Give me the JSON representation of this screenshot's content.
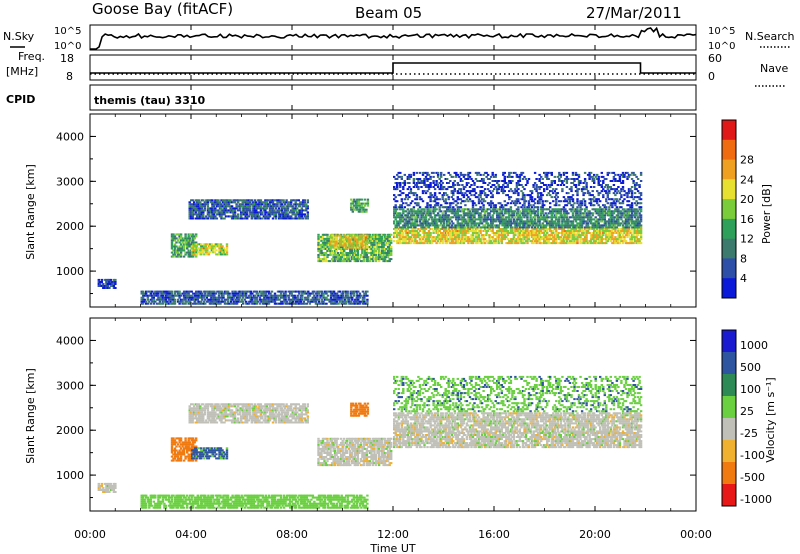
{
  "header": {
    "station": "Goose Bay (fitACF)",
    "beam": "Beam 05",
    "date": "27/Mar/2011"
  },
  "top_panels": {
    "nsky": {
      "label": "N.Sky",
      "ticks": [
        "10^5",
        "10^0"
      ]
    },
    "nsearch": {
      "label": "N.Search",
      "ticks": [
        "10^5",
        "10^0"
      ]
    },
    "freq": {
      "label_line1": "Freq.",
      "label_line2": "[MHz]",
      "ticks": [
        "18",
        "8"
      ]
    },
    "nave": {
      "label": "Nave",
      "ticks": [
        "60",
        "0"
      ]
    },
    "cpid": {
      "label": "CPID",
      "value": "themis (tau) 3310"
    }
  },
  "colors": {
    "power_scale": [
      "#0a1ad8",
      "#2e4fa8",
      "#3d7a6e",
      "#2ea05a",
      "#7acc3a",
      "#e8e030",
      "#f0a020",
      "#f06a10",
      "#e01818"
    ],
    "velocity_scale": [
      "#1a1ad0",
      "#2e55a0",
      "#2e8a55",
      "#6ad040",
      "#c0c0b8",
      "#f0b030",
      "#f07a10",
      "#e81818"
    ],
    "ground_scatter": "#c0c0b8"
  },
  "chart_data": [
    {
      "type": "heatmap",
      "name": "power-panel",
      "ylabel": "Slant Range [km]",
      "xlim": [
        0,
        24
      ],
      "ylim": [
        200,
        4500
      ],
      "yticks": [
        "1000",
        "2000",
        "3000",
        "4000"
      ],
      "colorbar": {
        "label": "Power [dB]",
        "ticks": [
          "4",
          "8",
          "12",
          "16",
          "20",
          "24",
          "28"
        ],
        "range": [
          0,
          32
        ]
      },
      "regions": [
        {
          "t": [
            0.3,
            1.0
          ],
          "r": [
            600,
            800
          ],
          "v": 4
        },
        {
          "t": [
            3.2,
            4.2
          ],
          "r": [
            1300,
            1800
          ],
          "v": 12
        },
        {
          "t": [
            4.0,
            5.4
          ],
          "r": [
            1350,
            1600
          ],
          "v": 18
        },
        {
          "t": [
            3.9,
            8.6
          ],
          "r": [
            2150,
            2600
          ],
          "v": 6
        },
        {
          "t": [
            9.0,
            11.9
          ],
          "r": [
            1200,
            1800
          ],
          "v": 14
        },
        {
          "t": [
            9.5,
            11.0
          ],
          "r": [
            1500,
            1800
          ],
          "v": 20
        },
        {
          "t": [
            10.3,
            11.0
          ],
          "r": [
            2300,
            2600
          ],
          "v": 12
        },
        {
          "t": [
            12.0,
            21.8
          ],
          "r": [
            1600,
            1950
          ],
          "v": 20
        },
        {
          "t": [
            12.0,
            21.8
          ],
          "r": [
            1950,
            2400
          ],
          "v": 10
        },
        {
          "t": [
            12.0,
            21.8
          ],
          "r": [
            2400,
            3200
          ],
          "v": 4
        },
        {
          "t": [
            2.0,
            11.0
          ],
          "r": [
            250,
            550
          ],
          "v": 6
        }
      ]
    },
    {
      "type": "heatmap",
      "name": "velocity-panel",
      "ylabel": "Slant Range [km]",
      "xlabel": "Time UT",
      "xlim": [
        0,
        24
      ],
      "ylim": [
        200,
        4500
      ],
      "xticks": [
        "00:00",
        "04:00",
        "08:00",
        "12:00",
        "16:00",
        "20:00",
        "00:00"
      ],
      "yticks": [
        "1000",
        "2000",
        "3000",
        "4000"
      ],
      "colorbar": {
        "label": "Velocity [m s⁻¹]",
        "ticks": [
          "1000",
          "500",
          "100",
          "25",
          "-25",
          "-100",
          "-500",
          "-1000"
        ],
        "range": [
          -1200,
          1200
        ]
      },
      "regions": [
        {
          "t": [
            0.3,
            1.0
          ],
          "r": [
            600,
            800
          ],
          "v": 0
        },
        {
          "t": [
            3.2,
            4.2
          ],
          "r": [
            1300,
            1800
          ],
          "v": -150
        },
        {
          "t": [
            4.0,
            5.4
          ],
          "r": [
            1350,
            1600
          ],
          "v": 120
        },
        {
          "t": [
            3.9,
            8.6
          ],
          "r": [
            2150,
            2600
          ],
          "v": 0
        },
        {
          "t": [
            9.0,
            11.9
          ],
          "r": [
            1200,
            1800
          ],
          "v": 0
        },
        {
          "t": [
            10.3,
            11.0
          ],
          "r": [
            2300,
            2600
          ],
          "v": -300
        },
        {
          "t": [
            12.0,
            21.8
          ],
          "r": [
            1600,
            1950
          ],
          "v": 0
        },
        {
          "t": [
            12.0,
            21.8
          ],
          "r": [
            1950,
            2400
          ],
          "v": 0
        },
        {
          "t": [
            12.0,
            21.8
          ],
          "r": [
            2400,
            3200
          ],
          "v": 80
        },
        {
          "t": [
            2.0,
            11.0
          ],
          "r": [
            250,
            550
          ],
          "v": 60
        }
      ]
    }
  ]
}
